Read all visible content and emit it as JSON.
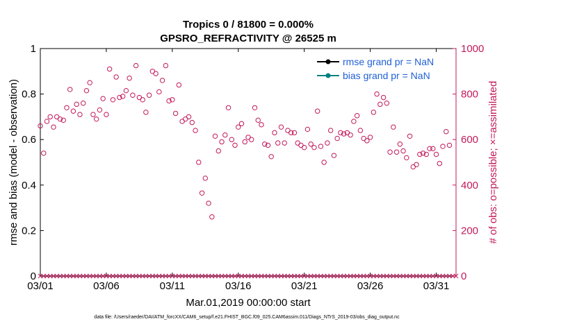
{
  "chart_data": {
    "type": "scatter",
    "title": [
      "Tropics 0 / 81800 = 0.000%",
      "GPSRO_REFRACTIVITY @ 26525 m"
    ],
    "xlabel": "Mar.01,2019 00:00:00 start",
    "ylabel_left": "rmse and bias (model - observation)",
    "ylabel_right": "# of obs: o=possible; ×=assimilated",
    "footer": "data file: /Users/raeder/DAI/ATM_forcXX/CAM6_setup/f.e21.FHIST_BGC.f09_025.CAM6assim.011/Diags_NTrS_2019-03/obs_diag_output.nc",
    "xlim": [
      0,
      31.5
    ],
    "ylim_left": [
      0,
      1
    ],
    "ylim_right": [
      0,
      1000
    ],
    "x_ticks": [
      0,
      5,
      10,
      15,
      20,
      25,
      30
    ],
    "x_tick_labels": [
      "03/01",
      "03/06",
      "03/11",
      "03/16",
      "03/21",
      "03/26",
      "03/31"
    ],
    "y_left_ticks": [
      "0",
      "0.2",
      "0.4",
      "0.6",
      "0.8",
      "1"
    ],
    "y_right_ticks": [
      "0",
      "200",
      "400",
      "600",
      "800",
      "1000"
    ],
    "legend": [
      "rmse grand pr = NaN",
      "bias grand pr = NaN"
    ],
    "colors": {
      "rmse": "#000000",
      "bias": "#008080",
      "obs": "#c2185b",
      "legend_text": "#1f5fd6"
    },
    "possible_obs": [
      {
        "x": 0.0,
        "y": 660
      },
      {
        "x": 0.25,
        "y": 540
      },
      {
        "x": 0.5,
        "y": 680
      },
      {
        "x": 0.75,
        "y": 700
      },
      {
        "x": 1.0,
        "y": 655
      },
      {
        "x": 1.25,
        "y": 700
      },
      {
        "x": 1.5,
        "y": 690
      },
      {
        "x": 1.75,
        "y": 685
      },
      {
        "x": 2.0,
        "y": 740
      },
      {
        "x": 2.25,
        "y": 820
      },
      {
        "x": 2.5,
        "y": 725
      },
      {
        "x": 2.75,
        "y": 755
      },
      {
        "x": 3.0,
        "y": 710
      },
      {
        "x": 3.25,
        "y": 760
      },
      {
        "x": 3.5,
        "y": 815
      },
      {
        "x": 3.75,
        "y": 850
      },
      {
        "x": 4.0,
        "y": 710
      },
      {
        "x": 4.25,
        "y": 690
      },
      {
        "x": 4.5,
        "y": 730
      },
      {
        "x": 4.75,
        "y": 780
      },
      {
        "x": 5.0,
        "y": 710
      },
      {
        "x": 5.25,
        "y": 910
      },
      {
        "x": 5.5,
        "y": 775
      },
      {
        "x": 5.75,
        "y": 875
      },
      {
        "x": 6.0,
        "y": 785
      },
      {
        "x": 6.25,
        "y": 790
      },
      {
        "x": 6.5,
        "y": 815
      },
      {
        "x": 6.75,
        "y": 870
      },
      {
        "x": 7.0,
        "y": 795
      },
      {
        "x": 7.25,
        "y": 925
      },
      {
        "x": 7.5,
        "y": 785
      },
      {
        "x": 7.75,
        "y": 775
      },
      {
        "x": 8.0,
        "y": 720
      },
      {
        "x": 8.25,
        "y": 795
      },
      {
        "x": 8.5,
        "y": 900
      },
      {
        "x": 8.75,
        "y": 890
      },
      {
        "x": 9.0,
        "y": 810
      },
      {
        "x": 9.25,
        "y": 860
      },
      {
        "x": 9.5,
        "y": 925
      },
      {
        "x": 9.75,
        "y": 770
      },
      {
        "x": 10.0,
        "y": 775
      },
      {
        "x": 10.25,
        "y": 715
      },
      {
        "x": 10.5,
        "y": 840
      },
      {
        "x": 10.75,
        "y": 680
      },
      {
        "x": 11.0,
        "y": 690
      },
      {
        "x": 11.25,
        "y": 700
      },
      {
        "x": 11.5,
        "y": 675
      },
      {
        "x": 11.75,
        "y": 640
      },
      {
        "x": 12.0,
        "y": 500
      },
      {
        "x": 12.25,
        "y": 365
      },
      {
        "x": 12.5,
        "y": 430
      },
      {
        "x": 12.75,
        "y": 320
      },
      {
        "x": 13.0,
        "y": 260
      },
      {
        "x": 13.25,
        "y": 615
      },
      {
        "x": 13.5,
        "y": 550
      },
      {
        "x": 13.75,
        "y": 590
      },
      {
        "x": 14.0,
        "y": 620
      },
      {
        "x": 14.25,
        "y": 740
      },
      {
        "x": 14.5,
        "y": 600
      },
      {
        "x": 14.75,
        "y": 575
      },
      {
        "x": 15.0,
        "y": 655
      },
      {
        "x": 15.25,
        "y": 670
      },
      {
        "x": 15.5,
        "y": 590
      },
      {
        "x": 15.75,
        "y": 610
      },
      {
        "x": 16.0,
        "y": 600
      },
      {
        "x": 16.25,
        "y": 740
      },
      {
        "x": 16.5,
        "y": 685
      },
      {
        "x": 16.75,
        "y": 665
      },
      {
        "x": 17.0,
        "y": 580
      },
      {
        "x": 17.25,
        "y": 575
      },
      {
        "x": 17.5,
        "y": 525
      },
      {
        "x": 17.75,
        "y": 630
      },
      {
        "x": 18.0,
        "y": 585
      },
      {
        "x": 18.25,
        "y": 655
      },
      {
        "x": 18.5,
        "y": 585
      },
      {
        "x": 18.75,
        "y": 640
      },
      {
        "x": 19.0,
        "y": 630
      },
      {
        "x": 19.25,
        "y": 630
      },
      {
        "x": 19.5,
        "y": 585
      },
      {
        "x": 19.75,
        "y": 575
      },
      {
        "x": 20.0,
        "y": 565
      },
      {
        "x": 20.25,
        "y": 645
      },
      {
        "x": 20.5,
        "y": 580
      },
      {
        "x": 20.75,
        "y": 565
      },
      {
        "x": 21.0,
        "y": 725
      },
      {
        "x": 21.25,
        "y": 570
      },
      {
        "x": 21.5,
        "y": 500
      },
      {
        "x": 21.75,
        "y": 585
      },
      {
        "x": 22.0,
        "y": 640
      },
      {
        "x": 22.25,
        "y": 530
      },
      {
        "x": 22.5,
        "y": 605
      },
      {
        "x": 22.75,
        "y": 630
      },
      {
        "x": 23.0,
        "y": 625
      },
      {
        "x": 23.25,
        "y": 630
      },
      {
        "x": 23.5,
        "y": 620
      },
      {
        "x": 23.75,
        "y": 680
      },
      {
        "x": 24.0,
        "y": 705
      },
      {
        "x": 24.25,
        "y": 640
      },
      {
        "x": 24.5,
        "y": 605
      },
      {
        "x": 24.75,
        "y": 595
      },
      {
        "x": 25.0,
        "y": 610
      },
      {
        "x": 25.25,
        "y": 720
      },
      {
        "x": 25.5,
        "y": 800
      },
      {
        "x": 25.75,
        "y": 755
      },
      {
        "x": 26.0,
        "y": 785
      },
      {
        "x": 26.25,
        "y": 760
      },
      {
        "x": 26.5,
        "y": 545
      },
      {
        "x": 26.75,
        "y": 655
      },
      {
        "x": 27.0,
        "y": 545
      },
      {
        "x": 27.25,
        "y": 580
      },
      {
        "x": 27.5,
        "y": 550
      },
      {
        "x": 27.75,
        "y": 520
      },
      {
        "x": 28.0,
        "y": 615
      },
      {
        "x": 28.25,
        "y": 480
      },
      {
        "x": 28.5,
        "y": 490
      },
      {
        "x": 28.75,
        "y": 535
      },
      {
        "x": 29.0,
        "y": 540
      },
      {
        "x": 29.25,
        "y": 535
      },
      {
        "x": 29.5,
        "y": 560
      },
      {
        "x": 29.75,
        "y": 560
      },
      {
        "x": 30.0,
        "y": 535
      },
      {
        "x": 30.25,
        "y": 495
      },
      {
        "x": 30.5,
        "y": 570
      },
      {
        "x": 30.75,
        "y": 635
      },
      {
        "x": 31.0,
        "y": 575
      }
    ],
    "assimilated_obs": {
      "x_start": 0.0,
      "x_end": 31.5,
      "step": 0.25,
      "y": 0
    }
  }
}
